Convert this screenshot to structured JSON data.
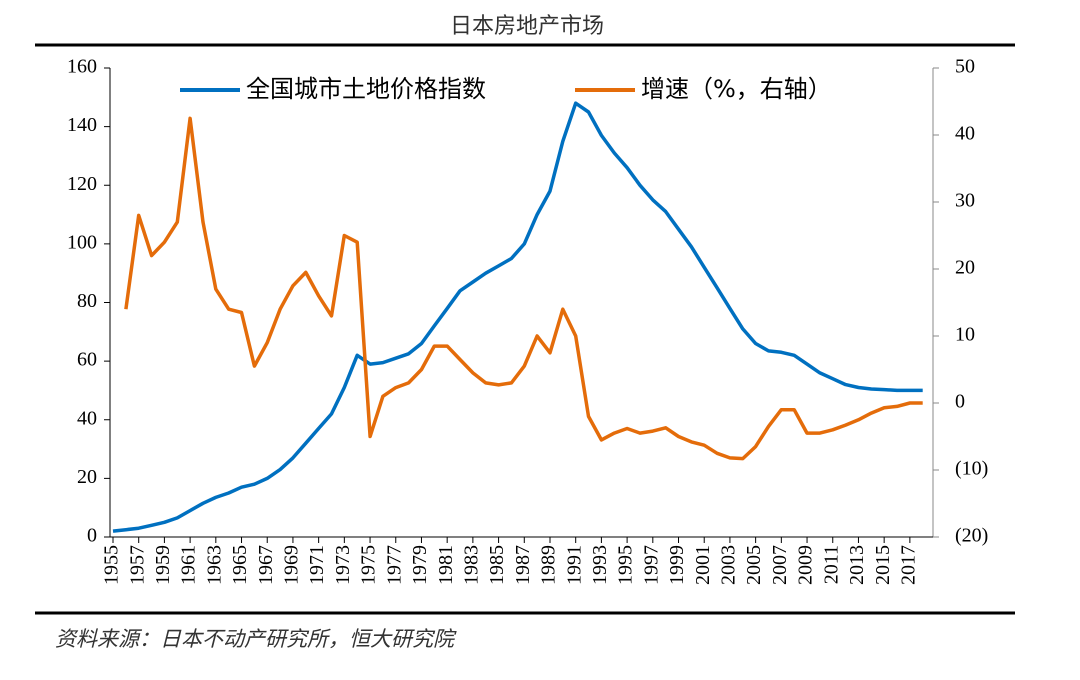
{
  "chart_data": {
    "type": "line",
    "title": "日本房地产市场",
    "source": "资料来源：日本不动产研究所，恒大研究院",
    "x": [
      1955,
      1956,
      1957,
      1958,
      1959,
      1960,
      1961,
      1962,
      1963,
      1964,
      1965,
      1966,
      1967,
      1968,
      1969,
      1970,
      1971,
      1972,
      1973,
      1974,
      1975,
      1976,
      1977,
      1978,
      1979,
      1980,
      1981,
      1982,
      1983,
      1984,
      1985,
      1986,
      1987,
      1988,
      1989,
      1990,
      1991,
      1992,
      1993,
      1994,
      1995,
      1996,
      1997,
      1998,
      1999,
      2000,
      2001,
      2002,
      2003,
      2004,
      2005,
      2006,
      2007,
      2008,
      2009,
      2010,
      2011,
      2012,
      2013,
      2014,
      2015,
      2016,
      2017,
      2018
    ],
    "xlim": [
      1955,
      2018.8
    ],
    "xticks": [
      1955,
      1957,
      1959,
      1961,
      1963,
      1965,
      1967,
      1969,
      1971,
      1973,
      1975,
      1977,
      1979,
      1981,
      1983,
      1985,
      1987,
      1989,
      1991,
      1993,
      1995,
      1997,
      1999,
      2001,
      2003,
      2005,
      2007,
      2009,
      2011,
      2013,
      2015,
      2017
    ],
    "series": [
      {
        "name": "全国城市土地价格指数",
        "color": "#0070c0",
        "values": [
          2,
          2.5,
          3,
          4,
          5,
          6.5,
          9,
          11.5,
          13.5,
          15,
          17,
          18,
          20,
          23,
          27,
          32,
          37,
          42,
          51,
          62,
          59,
          59.5,
          61,
          62.5,
          66,
          72,
          78,
          84,
          87,
          90,
          92.5,
          95,
          100,
          110,
          118,
          135,
          148,
          145,
          137,
          131,
          126,
          120,
          115,
          111,
          105,
          99,
          92,
          85,
          78,
          71,
          66,
          63.5,
          63,
          62,
          59,
          56,
          54,
          52,
          51,
          50.5,
          50.3,
          50,
          50,
          50
        ]
      },
      {
        "name": "增速（%，右轴）",
        "color": "#e46c0a",
        "axis": "y2",
        "values": [
          null,
          14,
          28,
          22,
          24,
          27,
          42.5,
          27,
          17,
          14,
          13.5,
          5.5,
          9,
          14,
          17.5,
          19.5,
          16,
          13,
          25,
          24,
          -5,
          1,
          2.3,
          3,
          5,
          8.5,
          8.5,
          6.5,
          4.5,
          3,
          2.7,
          3,
          5.5,
          10,
          7.5,
          14,
          10,
          -2,
          -5.5,
          -4.5,
          -3.8,
          -4.5,
          -4.2,
          -3.7,
          -5,
          -5.8,
          -6.3,
          -7.5,
          -8.2,
          -8.3,
          -6.5,
          -3.5,
          -1,
          -1,
          -4.5,
          -4.5,
          -4,
          -3.3,
          -2.5,
          -1.5,
          -0.7,
          -0.5,
          0,
          0
        ]
      }
    ],
    "ylim": [
      0,
      160
    ],
    "yticks": [
      0,
      20,
      40,
      60,
      80,
      100,
      120,
      140,
      160
    ],
    "y2lim": [
      -20,
      50
    ],
    "y2ticks": [
      {
        "value": -20,
        "label": "(20)"
      },
      {
        "value": -10,
        "label": "(10)"
      },
      0,
      10,
      20,
      30,
      40,
      50
    ],
    "negative_label_color": "#ff0000"
  }
}
